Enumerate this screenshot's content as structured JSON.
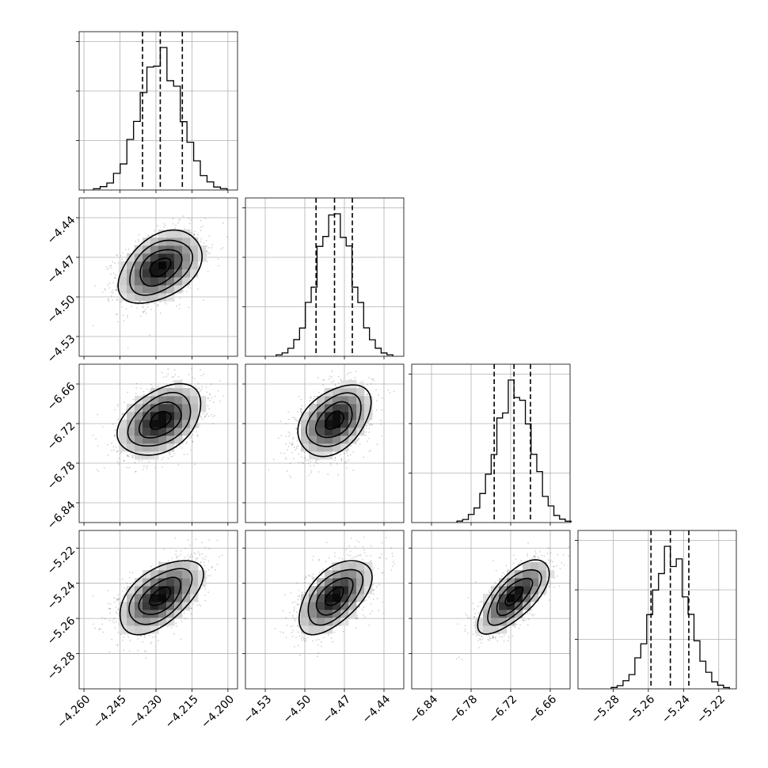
{
  "chart_data": {
    "type": "corner",
    "grid": true,
    "parameters": [
      {
        "index": 0,
        "range": [
          -4.262,
          -4.196
        ],
        "ticks": [
          "−4.260",
          "−4.245",
          "−4.230",
          "−4.215",
          "−4.200"
        ],
        "tick_values": [
          -4.26,
          -4.245,
          -4.23,
          -4.215,
          -4.2
        ],
        "median": -4.2282,
        "quantiles": [
          -4.2356,
          -4.2282,
          -4.219
        ],
        "std": 0.0087
      },
      {
        "index": 1,
        "range": [
          -4.545,
          -4.425
        ],
        "ticks": [
          "−4.53",
          "−4.50",
          "−4.47",
          "−4.44"
        ],
        "tick_values": [
          -4.53,
          -4.5,
          -4.47,
          -4.44
        ],
        "median": -4.4775,
        "quantiles": [
          -4.4915,
          -4.4775,
          -4.464
        ],
        "std": 0.0138
      },
      {
        "index": 2,
        "range": [
          -6.87,
          -6.63
        ],
        "ticks": [
          "−6.84",
          "−6.78",
          "−6.72",
          "−6.66"
        ],
        "tick_values": [
          -6.84,
          -6.78,
          -6.72,
          -6.66
        ],
        "median": -6.715,
        "quantiles": [
          -6.745,
          -6.715,
          -6.69
        ],
        "std": 0.027
      },
      {
        "index": 3,
        "range": [
          -5.3,
          -5.21
        ],
        "ticks": [
          "−5.28",
          "−5.26",
          "−5.24",
          "−5.22"
        ],
        "tick_values": [
          -5.28,
          -5.26,
          -5.24,
          -5.22
        ],
        "median": -5.2475,
        "quantiles": [
          -5.2585,
          -5.2475,
          -5.237
        ],
        "std": 0.0105
      }
    ],
    "correlations": {
      "1,0": 0.4,
      "2,0": 0.4,
      "2,1": 0.4,
      "3,0": 0.55,
      "3,1": 0.55,
      "3,2": 0.7
    },
    "contour_levels_sigma": [
      0.5,
      1.0,
      1.5,
      2.0
    ],
    "colors": {
      "ink": "#000000",
      "grid": "#b0b0b0",
      "background": "#ffffff"
    }
  }
}
